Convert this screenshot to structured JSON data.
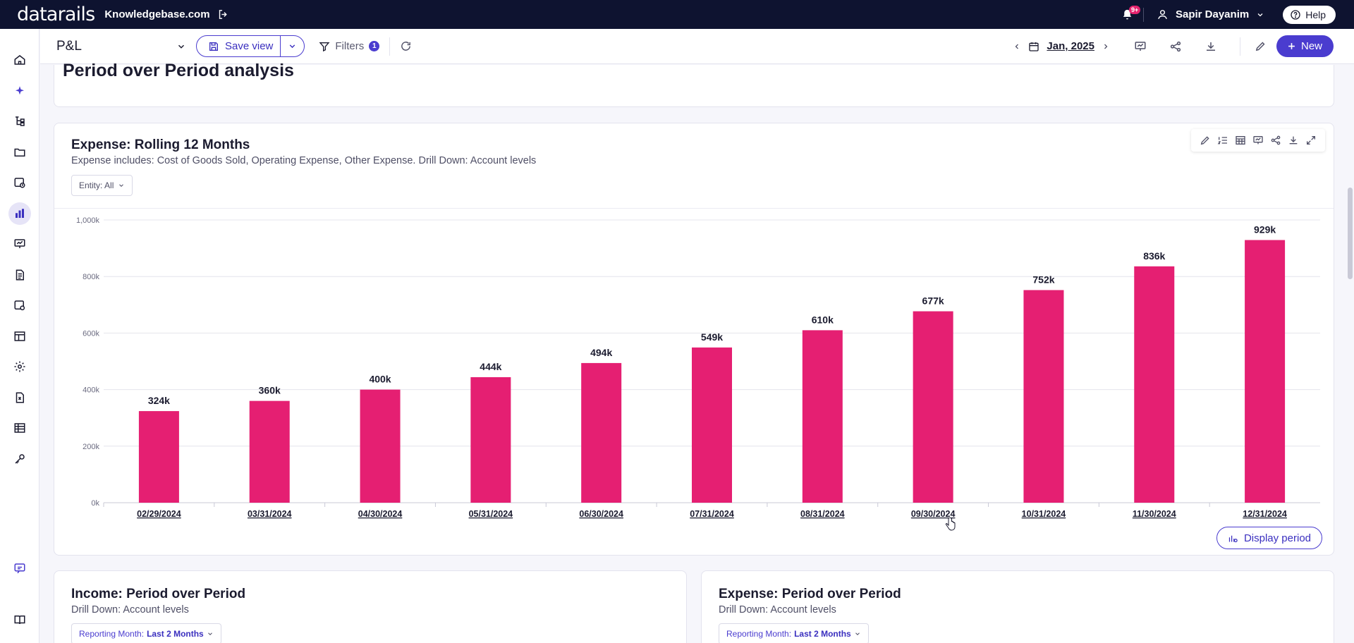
{
  "app": {
    "logo_text": "datarails",
    "workspace": "Knowledgebase.com",
    "notification_badge": "9+",
    "user_name": "Sapir Dayanim",
    "help_label": "Help"
  },
  "sidebar": {
    "items": [
      {
        "name": "home-icon"
      },
      {
        "name": "sparkle-ai-icon"
      },
      {
        "name": "hierarchy-icon"
      },
      {
        "name": "folder-icon"
      },
      {
        "name": "scheduled-reports-icon"
      },
      {
        "name": "bar-chart-icon",
        "active": true
      },
      {
        "name": "presentation-icon"
      },
      {
        "name": "document-icon"
      },
      {
        "name": "report-settings-icon"
      },
      {
        "name": "table-layout-icon"
      },
      {
        "name": "gear-icon"
      },
      {
        "name": "excel-file-icon"
      },
      {
        "name": "grid-table-icon"
      },
      {
        "name": "key-icon"
      },
      {
        "name": "chat-icon"
      },
      {
        "name": "book-icon"
      }
    ]
  },
  "toolbar": {
    "report_title": "P&L",
    "save_label": "Save view",
    "filters_label": "Filters",
    "filters_count": "1",
    "period_label": "Jan, 2025",
    "new_label": "New"
  },
  "section": {
    "title": "Period over Period analysis"
  },
  "chart_card": {
    "title": "Expense: Rolling 12 Months",
    "subtitle": "Expense includes: Cost of Goods Sold, Operating Expense, Other Expense. Drill Down: Account levels",
    "entity_filter": "Entity: All",
    "display_period_label": "Display period"
  },
  "chart_data": {
    "type": "bar",
    "categories": [
      "02/29/2024",
      "03/31/2024",
      "04/30/2024",
      "05/31/2024",
      "06/30/2024",
      "07/31/2024",
      "08/31/2024",
      "09/30/2024",
      "10/31/2024",
      "11/30/2024",
      "12/31/2024"
    ],
    "values": [
      324,
      360,
      400,
      444,
      494,
      549,
      610,
      677,
      752,
      836,
      929
    ],
    "data_labels": [
      "324k",
      "360k",
      "400k",
      "444k",
      "494k",
      "549k",
      "610k",
      "677k",
      "752k",
      "836k",
      "929k"
    ],
    "y_ticks": [
      0,
      200,
      400,
      600,
      800,
      1000
    ],
    "y_tick_labels": [
      "0k",
      "200k",
      "400k",
      "600k",
      "800k",
      "1,000k"
    ],
    "ylim": [
      0,
      1000
    ],
    "unit": "k",
    "bar_color": "#e51f72",
    "grid": true
  },
  "income_card": {
    "title": "Income: Period over Period",
    "subtitle": "Drill Down: Account levels",
    "reporting_label": "Reporting Month:",
    "reporting_value": "Last 2 Months"
  },
  "expense_card": {
    "title": "Expense: Period over Period",
    "subtitle": "Drill Down: Account levels",
    "reporting_label": "Reporting Month:",
    "reporting_value": "Last 2 Months"
  },
  "colors": {
    "topbar": "#0e1330",
    "accent": "#4a3ccf",
    "bar": "#e51f72"
  }
}
